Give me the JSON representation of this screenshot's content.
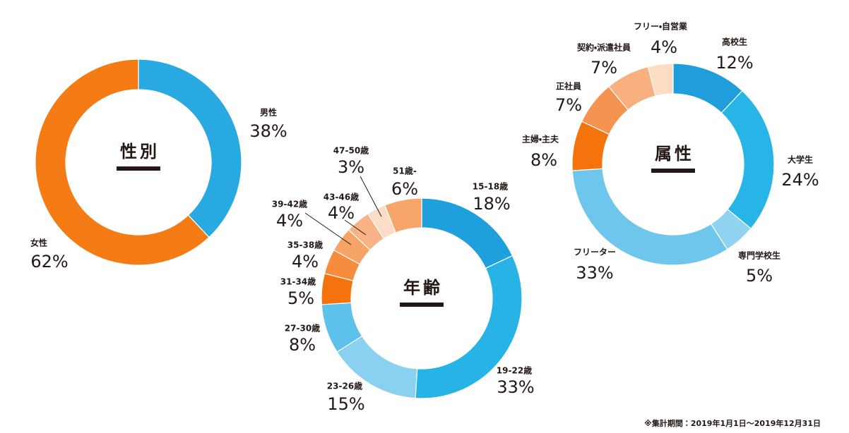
{
  "chart_data": [
    {
      "type": "pie",
      "donut": true,
      "title": "性別",
      "categories": [
        "男性",
        "女性"
      ],
      "values": [
        38,
        62
      ],
      "value_labels": [
        "38%",
        "62%"
      ],
      "colors": [
        "#29a9e1",
        "#f57c14"
      ]
    },
    {
      "type": "pie",
      "donut": true,
      "title": "年齢",
      "categories": [
        "15-18歳",
        "19-22歳",
        "23-26歳",
        "27-30歳",
        "31-34歳",
        "35-38歳",
        "39-42歳",
        "43-46歳",
        "47-50歳",
        "51歳-"
      ],
      "values": [
        18,
        33,
        15,
        8,
        5,
        4,
        4,
        4,
        3,
        6
      ],
      "value_labels": [
        "18%",
        "33%",
        "15%",
        "8%",
        "5%",
        "4%",
        "4%",
        "4%",
        "3%",
        "6%"
      ],
      "colors": [
        "#1f9fdb",
        "#28b3e6",
        "#8ad0f0",
        "#5ec1eb",
        "#f5730d",
        "#f58c3e",
        "#f7a466",
        "#f8b283",
        "#fbdcc6",
        "#f7a56b"
      ]
    },
    {
      "type": "pie",
      "donut": true,
      "title": "属性",
      "categories": [
        "高校生",
        "大学生",
        "専門学校生",
        "フリーター",
        "主婦・主夫",
        "正社員",
        "契約・派遣社員",
        "フリー・自営業"
      ],
      "values": [
        12,
        24,
        5,
        33,
        8,
        7,
        7,
        4
      ],
      "value_labels": [
        "12%",
        "24%",
        "5%",
        "33%",
        "8%",
        "7%",
        "7%",
        "4%"
      ],
      "colors": [
        "#1f9edb",
        "#26b5e6",
        "#8fd3f0",
        "#6ec6ed",
        "#f5730d",
        "#f59450",
        "#f8b07e",
        "#fddcc4"
      ]
    }
  ],
  "footnote": "※集計期間：2019年1月1日～2019年12月31日"
}
